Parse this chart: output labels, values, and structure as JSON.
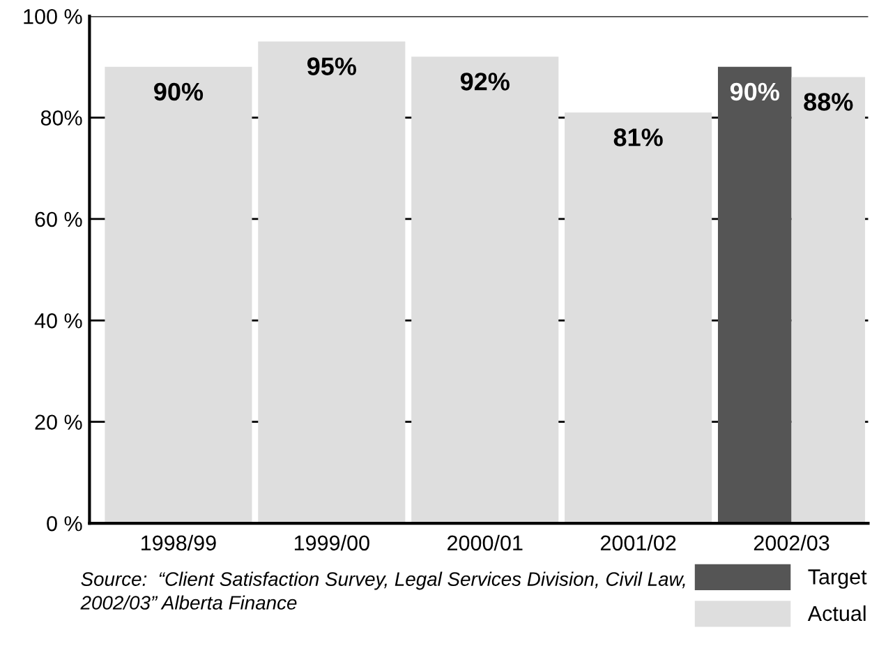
{
  "chart_data": {
    "type": "bar",
    "categories": [
      "1998/99",
      "1999/00",
      "2000/01",
      "2001/02",
      "2002/03"
    ],
    "series": [
      {
        "name": "Target",
        "color": "#555555",
        "values": [
          null,
          null,
          null,
          null,
          90
        ],
        "value_labels": [
          null,
          null,
          null,
          null,
          "90%"
        ]
      },
      {
        "name": "Actual",
        "color": "#dedede",
        "values": [
          90,
          95,
          92,
          81,
          88
        ],
        "value_labels": [
          "90%",
          "95%",
          "92%",
          "81%",
          "88%"
        ]
      }
    ],
    "ylim": [
      0,
      100
    ],
    "yticks": [
      {
        "value": 0,
        "label": "0 %"
      },
      {
        "value": 20,
        "label": "20 %"
      },
      {
        "value": 40,
        "label": "40 %"
      },
      {
        "value": 60,
        "label": "60 %"
      },
      {
        "value": 80,
        "label": "80%"
      },
      {
        "value": 100,
        "label": "100 %"
      }
    ],
    "grid": "y",
    "legend": "bottom right",
    "annotations": [
      "Source:  “Client Satisfaction Survey, Legal Services Division, Civil Law,\n2002/03” Alberta Finance"
    ]
  }
}
